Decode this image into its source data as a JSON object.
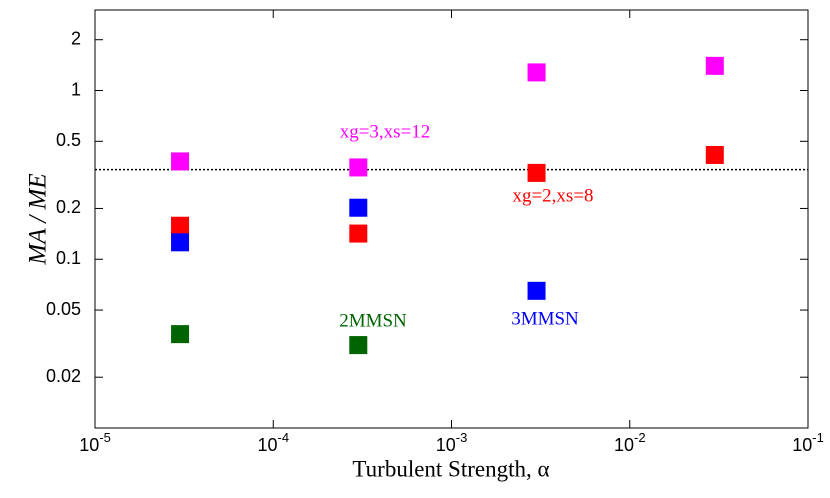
{
  "chart_data": {
    "type": "scatter",
    "xlabel": "Turbulent Strength, α",
    "ylabel": "MA / ME",
    "xscale": "log",
    "yscale": "log",
    "xlim": [
      1e-05,
      0.1
    ],
    "ylim": [
      0.01,
      3
    ],
    "xticks": [
      {
        "value": 1e-05,
        "label": "10-5"
      },
      {
        "value": 0.0001,
        "label": "10-4"
      },
      {
        "value": 0.001,
        "label": "10-3"
      },
      {
        "value": 0.01,
        "label": "10-2"
      },
      {
        "value": 0.1,
        "label": "10-1"
      }
    ],
    "yticks": [
      2,
      1,
      0.5,
      0.2,
      0.1,
      0.05,
      0.02
    ],
    "hline": 0.34,
    "series": [
      {
        "color": "#ff00ff",
        "x": [
          3e-05,
          0.0003,
          0.003,
          0.03
        ],
        "values": [
          0.38,
          0.35,
          1.28,
          1.4
        ]
      },
      {
        "color": "#ff0000",
        "x": [
          3e-05,
          0.0003,
          0.003,
          0.03
        ],
        "values": [
          0.158,
          0.142,
          0.325,
          0.415
        ]
      },
      {
        "color": "#0000ff",
        "x": [
          3e-05,
          0.0003,
          0.003
        ],
        "values": [
          0.126,
          0.202,
          0.065
        ]
      },
      {
        "color": "#006400",
        "x": [
          3e-05,
          0.0003
        ],
        "values": [
          0.036,
          0.031
        ]
      }
    ],
    "annotations": [
      {
        "text": "xg=3,xs=12",
        "color": "#ff00ff"
      },
      {
        "text": "xg=2,xs=8",
        "color": "#ff0000"
      },
      {
        "text": "2MMSN",
        "color": "#006400"
      },
      {
        "text": "3MMSN",
        "color": "#0000ff"
      }
    ]
  }
}
